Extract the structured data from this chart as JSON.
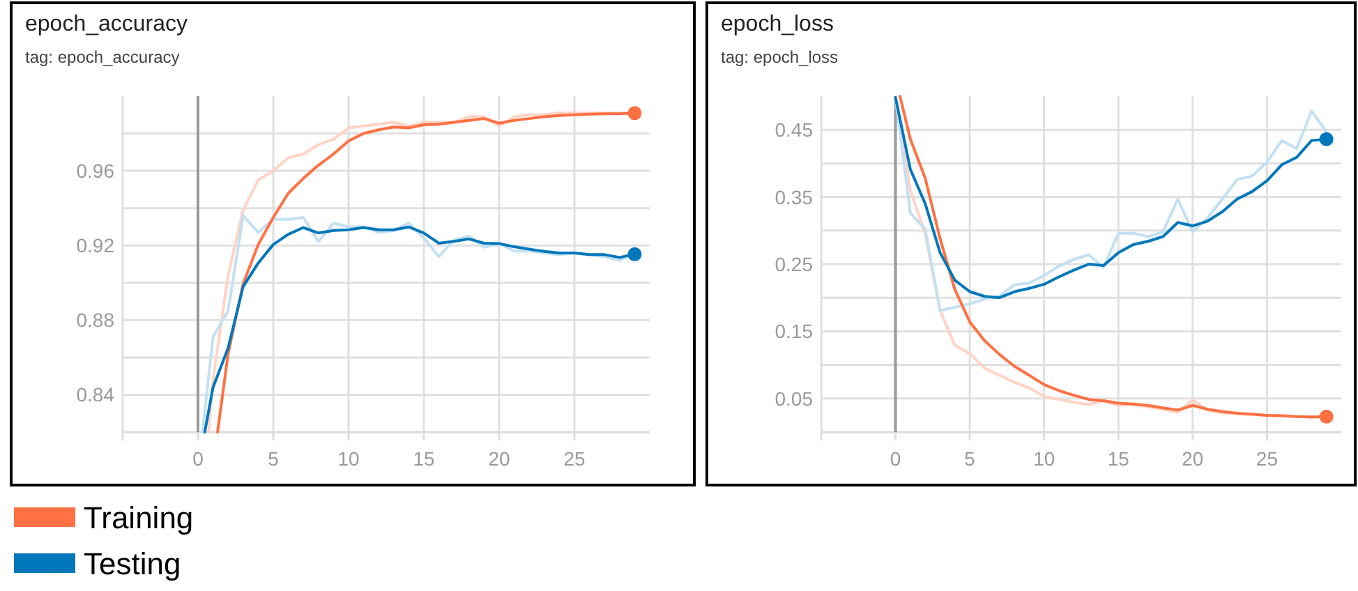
{
  "chart_data": [
    {
      "type": "line",
      "title": "epoch_accuracy",
      "subtitle": "tag: epoch_accuracy",
      "xlim": [
        -5,
        30
      ],
      "xticks": [
        {
          "value": -5,
          "label": null
        },
        0,
        5,
        10,
        15,
        20,
        25
      ],
      "ylim": [
        0.82,
        1.0
      ],
      "yticks": [
        {
          "value": 0.82,
          "label": null
        },
        0.84,
        {
          "value": 0.86,
          "label": null
        },
        0.88,
        {
          "value": 0.9,
          "label": null
        },
        0.92,
        {
          "value": 0.94,
          "label": null
        },
        0.96,
        {
          "value": 0.98,
          "label": null
        }
      ],
      "grid": true,
      "legend": "bottom",
      "ref_lines": [
        {
          "axis": "x",
          "value": 0,
          "color": "#999999"
        }
      ],
      "series": [
        {
          "color": "#ffd3c6",
          "x": [
            0.7,
            1,
            2,
            3,
            4,
            5,
            6,
            7,
            8,
            9,
            10,
            11,
            12,
            13,
            14,
            15,
            16,
            17,
            18,
            19,
            20,
            21,
            22,
            23,
            24,
            25,
            26,
            27,
            28,
            29
          ],
          "values": [
            0.82,
            0.848,
            0.904,
            0.939,
            0.955,
            0.96,
            0.967,
            0.969,
            0.974,
            0.977,
            0.983,
            0.984,
            0.985,
            0.986,
            0.984,
            0.986,
            0.986,
            0.986,
            0.989,
            0.989,
            0.984,
            0.989,
            0.99,
            0.99,
            0.991,
            0.991,
            0.991,
            0.991,
            0.991,
            0.991
          ]
        },
        {
          "color": "#c3e0f2",
          "x": [
            0.3,
            1,
            2,
            3,
            4,
            5,
            6,
            7,
            8,
            9,
            10,
            11,
            12,
            13,
            14,
            15,
            16,
            17,
            18,
            19,
            20,
            21,
            22,
            23,
            24,
            25,
            26,
            27,
            28,
            29
          ],
          "values": [
            0.82,
            0.871,
            0.885,
            0.936,
            0.927,
            0.934,
            0.934,
            0.935,
            0.922,
            0.932,
            0.93,
            0.93,
            0.927,
            0.928,
            0.932,
            0.924,
            0.914,
            0.923,
            0.925,
            0.919,
            0.921,
            0.917,
            0.917,
            0.916,
            0.915,
            0.916,
            0.915,
            0.914,
            0.912,
            0.916
          ]
        },
        {
          "name": "Training",
          "color": "#ff7043",
          "x": [
            1.3,
            2,
            3,
            4,
            5,
            6,
            7,
            8,
            9,
            10,
            11,
            12,
            13,
            14,
            15,
            16,
            17,
            18,
            19,
            20,
            21,
            22,
            23,
            24,
            25,
            26,
            27,
            28,
            29
          ],
          "values": [
            0.82,
            0.862,
            0.8995,
            0.9205,
            0.935,
            0.948,
            0.956,
            0.963,
            0.969,
            0.976,
            0.98,
            0.982,
            0.9835,
            0.983,
            0.9847,
            0.985,
            0.986,
            0.987,
            0.988,
            0.9855,
            0.987,
            0.988,
            0.989,
            0.9896,
            0.99,
            0.9904,
            0.9906,
            0.9906,
            0.9909
          ]
        },
        {
          "name": "Testing",
          "color": "#0077bb",
          "x": [
            0.45,
            1,
            2,
            3,
            4,
            5,
            6,
            7,
            8,
            9,
            10,
            11,
            12,
            13,
            14,
            15,
            16,
            17,
            18,
            19,
            20,
            21,
            22,
            23,
            24,
            25,
            26,
            27,
            28,
            29
          ],
          "values": [
            0.82,
            0.844,
            0.865,
            0.898,
            0.9106,
            0.9205,
            0.926,
            0.9296,
            0.9267,
            0.928,
            0.9284,
            0.9296,
            0.9284,
            0.9284,
            0.9299,
            0.9267,
            0.9212,
            0.9222,
            0.9235,
            0.9212,
            0.921,
            0.9193,
            0.918,
            0.9168,
            0.916,
            0.916,
            0.9151,
            0.9151,
            0.9136,
            0.9153
          ]
        },
        {
          "type": "scatter",
          "marker": "circle",
          "color": "#ff7043",
          "x": [
            29
          ],
          "values": [
            0.9909
          ]
        },
        {
          "type": "scatter",
          "marker": "circle",
          "color": "#0077bb",
          "x": [
            29
          ],
          "values": [
            0.9153
          ]
        }
      ]
    },
    {
      "type": "line",
      "title": "epoch_loss",
      "subtitle": "tag: epoch_loss",
      "xlim": [
        -5,
        30
      ],
      "xticks": [
        {
          "value": -5,
          "label": null
        },
        0,
        5,
        10,
        15,
        20,
        25
      ],
      "ylim": [
        0,
        0.5
      ],
      "yticks": [
        {
          "value": 0,
          "label": null
        },
        0.05,
        {
          "value": 0.1,
          "label": null
        },
        0.15,
        {
          "value": 0.2,
          "label": null
        },
        0.25,
        {
          "value": 0.3,
          "label": null
        },
        0.35,
        {
          "value": 0.4,
          "label": null
        },
        0.45
      ],
      "grid": true,
      "ref_lines": [
        {
          "axis": "x",
          "value": 0,
          "color": "#999999"
        }
      ],
      "series": [
        {
          "color": "#ffd3c6",
          "x": [
            0,
            1,
            2,
            3,
            4,
            5,
            6,
            7,
            8,
            9,
            10,
            11,
            12,
            13,
            14,
            15,
            16,
            17,
            18,
            19,
            20,
            21,
            22,
            23,
            24,
            25,
            26,
            27,
            28,
            29
          ],
          "values": [
            0.498,
            0.36,
            0.295,
            0.181,
            0.129,
            0.117,
            0.095,
            0.0845,
            0.074,
            0.066,
            0.053,
            0.0486,
            0.0445,
            0.041,
            0.0466,
            0.0397,
            0.041,
            0.0376,
            0.034,
            0.0293,
            0.048,
            0.0328,
            0.0286,
            0.0272,
            0.0259,
            0.025,
            0.0245,
            0.023,
            0.023,
            0.0238
          ]
        },
        {
          "color": "#c3e0f2",
          "x": [
            0,
            1,
            2,
            3,
            4,
            5,
            6,
            7,
            8,
            9,
            10,
            11,
            12,
            13,
            14,
            15,
            16,
            17,
            18,
            19,
            20,
            21,
            22,
            23,
            24,
            25,
            26,
            27,
            28,
            29
          ],
          "values": [
            0.498,
            0.326,
            0.302,
            0.181,
            0.186,
            0.191,
            0.198,
            0.203,
            0.219,
            0.222,
            0.233,
            0.247,
            0.257,
            0.264,
            0.245,
            0.296,
            0.296,
            0.291,
            0.298,
            0.347,
            0.298,
            0.319,
            0.347,
            0.376,
            0.381,
            0.402,
            0.434,
            0.422,
            0.478,
            0.447
          ]
        },
        {
          "color": "#ff7043",
          "x": [
            0.3,
            1,
            2,
            3,
            4,
            5,
            6,
            7,
            8,
            9,
            10,
            11,
            12,
            13,
            14,
            15,
            16,
            17,
            18,
            19,
            20,
            21,
            22,
            23,
            24,
            25,
            26,
            27,
            28,
            29
          ],
          "values": [
            0.5,
            0.436,
            0.378,
            0.288,
            0.212,
            0.164,
            0.136,
            0.1155,
            0.098,
            0.0845,
            0.0707,
            0.0617,
            0.0548,
            0.0486,
            0.0466,
            0.0431,
            0.0417,
            0.0397,
            0.036,
            0.0328,
            0.0397,
            0.034,
            0.0307,
            0.028,
            0.0266,
            0.025,
            0.0245,
            0.023,
            0.0224,
            0.023
          ]
        },
        {
          "color": "#0077bb",
          "x": [
            0,
            1,
            2,
            3,
            4,
            5,
            6,
            7,
            8,
            9,
            10,
            11,
            12,
            13,
            14,
            15,
            16,
            17,
            18,
            19,
            20,
            21,
            22,
            23,
            24,
            25,
            26,
            27,
            28,
            29
          ],
          "values": [
            0.498,
            0.391,
            0.34,
            0.267,
            0.226,
            0.209,
            0.202,
            0.2,
            0.209,
            0.214,
            0.22,
            0.231,
            0.241,
            0.25,
            0.248,
            0.267,
            0.279,
            0.284,
            0.291,
            0.312,
            0.307,
            0.314,
            0.328,
            0.347,
            0.358,
            0.374,
            0.398,
            0.409,
            0.434,
            0.436
          ]
        },
        {
          "type": "scatter",
          "marker": "circle",
          "color": "#ff7043",
          "x": [
            29
          ],
          "values": [
            0.023
          ]
        },
        {
          "type": "scatter",
          "marker": "circle",
          "color": "#0077bb",
          "x": [
            29
          ],
          "values": [
            0.436
          ]
        }
      ]
    }
  ]
}
